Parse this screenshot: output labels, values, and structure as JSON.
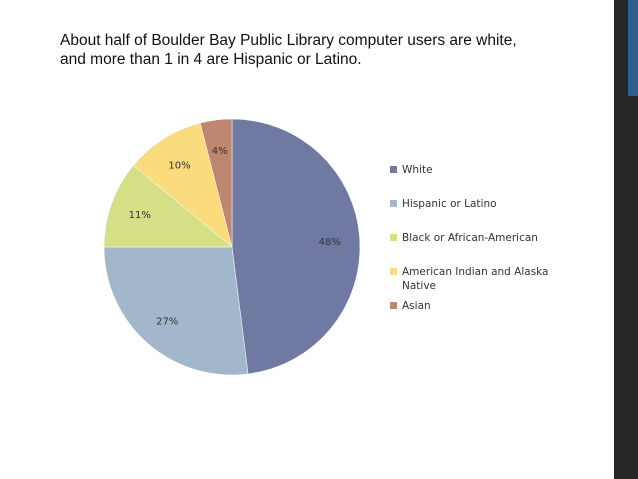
{
  "slide": {
    "title_line1": "About half of Boulder Bay Public Library computer users are white,",
    "title_line2": "and more than 1 in 4 are Hispanic or Latino.",
    "accent_color": "#2e5e8e",
    "bar_color": "#262626"
  },
  "chart_data": {
    "type": "pie",
    "title": "",
    "start_angle_deg": 0,
    "direction": "clockwise",
    "legend_position": "right",
    "slices": [
      {
        "label": "White",
        "value": 48,
        "data_label": "48%",
        "color": "#7079a1"
      },
      {
        "label": "Hispanic or Latino",
        "value": 27,
        "data_label": "27%",
        "color": "#a2b7cc"
      },
      {
        "label": "Black or African-American",
        "value": 11,
        "data_label": "11%",
        "color": "#d4df86"
      },
      {
        "label": "American Indian and Alaska Native",
        "value": 10,
        "data_label": "10%",
        "color": "#fadc7e"
      },
      {
        "label": "Asian",
        "value": 4,
        "data_label": "4%",
        "color": "#bf8670"
      }
    ]
  }
}
